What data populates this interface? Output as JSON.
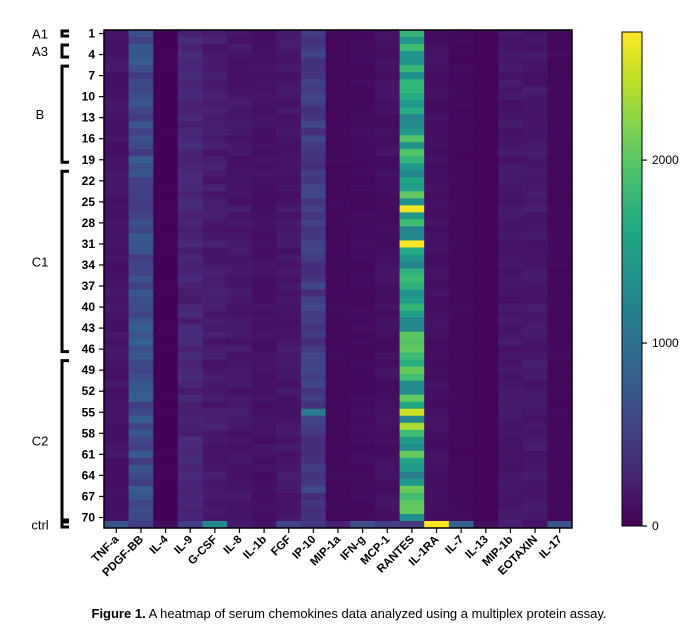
{
  "chart_data": {
    "type": "heatmap",
    "colormap": "viridis",
    "colorbar": {
      "ticks": [
        0,
        1000,
        2000
      ],
      "max": 2700
    },
    "x_categories": [
      "TNF-a",
      "PDGF-BB",
      "IL-4",
      "IL-9",
      "G-CSF",
      "IL-8",
      "IL-1b",
      "FGF",
      "IP-10",
      "MIP-1a",
      "IFN-g",
      "MCP-1",
      "RANTES",
      "IL-1RA",
      "IL-7",
      "IL-13",
      "MIP-1b",
      "EOTAXIN",
      "IL-17"
    ],
    "y_tick_labels": [
      "1",
      "4",
      "7",
      "10",
      "13",
      "16",
      "19",
      "22",
      "25",
      "28",
      "31",
      "34",
      "37",
      "40",
      "43",
      "46",
      "49",
      "52",
      "55",
      "58",
      "61",
      "64",
      "67",
      "70"
    ],
    "row_groups": [
      "A1",
      "A3",
      "B",
      "C1",
      "C2",
      "ctrl"
    ],
    "row_count": 71,
    "typical_values": [
      150,
      650,
      20,
      280,
      200,
      170,
      130,
      170,
      450,
      60,
      80,
      120,
      1600,
      120,
      60,
      30,
      170,
      180,
      60
    ],
    "ctrl_values": [
      700,
      500,
      100,
      500,
      1250,
      200,
      150,
      550,
      450,
      250,
      650,
      500,
      450,
      2700,
      850,
      100,
      250,
      150,
      700
    ],
    "high_cells": [
      {
        "row": 26,
        "column": "RANTES",
        "value": 2650
      },
      {
        "row": 31,
        "column": "RANTES",
        "value": 2700
      },
      {
        "row": 55,
        "column": "RANTES",
        "value": 2500
      },
      {
        "row": 57,
        "column": "RANTES",
        "value": 2350
      },
      {
        "row": 55,
        "column": "IP-10",
        "value": 1100
      }
    ]
  },
  "caption": {
    "label": "Figure 1.",
    "text": " A heatmap of serum chemokines data analyzed using a multiplex protein assay."
  }
}
